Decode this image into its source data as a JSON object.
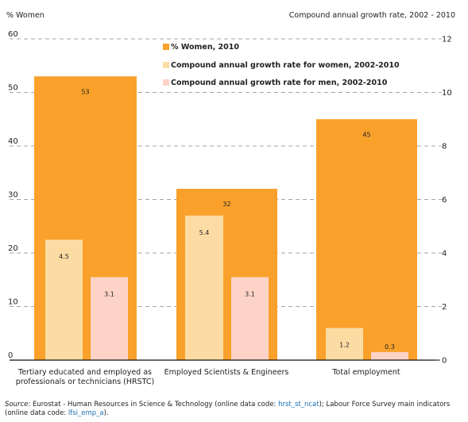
{
  "chart_data": {
    "type": "bar",
    "title": "",
    "left_axis_label": "% Women",
    "right_axis_label": "Compound  annual growth rate, 2002 - 2010",
    "left_ylim": [
      0,
      60
    ],
    "right_ylim": [
      0,
      12
    ],
    "left_ticks": [
      "0",
      "10",
      "20",
      "30",
      "40",
      "50",
      "60"
    ],
    "right_ticks": [
      "0",
      "2",
      "4",
      "6",
      "8",
      "10",
      "12"
    ],
    "categories": [
      {
        "lines": [
          "Tertiary educated and employed as",
          "professionals or technicians (HRSTC)"
        ]
      },
      {
        "lines": [
          "Employed Scientists & Engineers"
        ]
      },
      {
        "lines": [
          "Total employment"
        ]
      }
    ],
    "series": [
      {
        "name": "% Women, 2010",
        "axis": "left",
        "color": "#f9a12b",
        "values": [
          53,
          32,
          45
        ],
        "labels": [
          "53",
          "32",
          "45"
        ]
      },
      {
        "name": "Compound annual growth rate for women, 2002-2010",
        "axis": "right",
        "color": "#fddca4",
        "values": [
          4.5,
          5.4,
          1.2
        ],
        "labels": [
          "4.5",
          "5.4",
          "1.2"
        ]
      },
      {
        "name": "Compound annual growth rate for men, 2002-2010",
        "axis": "right",
        "color": "#fdd3c8",
        "values": [
          3.1,
          3.1,
          0.3
        ],
        "labels": [
          "3.1",
          "3.1",
          "0.3"
        ]
      }
    ],
    "legend_position": "top-center",
    "grid": "dashed-right-axis-ticks"
  },
  "source": {
    "prefix": "Source:",
    "text1": " Eurostat - Human Resources in Science & Technology (online data code: ",
    "code1": "hrst_st_ncat",
    "text2": "); Labour Force Survey main indicators",
    "text3": "(online data code: ",
    "code2": "lfsi_emp_a",
    "text4": ")."
  }
}
